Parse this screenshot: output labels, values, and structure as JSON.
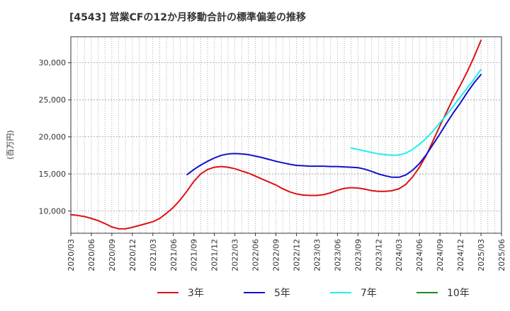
{
  "chart_data": {
    "type": "line",
    "title": "[4543]  営業CFの12か月移動合計の標準偏差の推移",
    "ylabel": "(百万円)",
    "xlabel": "",
    "ylim": [
      7000,
      33500
    ],
    "yticks": [
      10000,
      15000,
      20000,
      25000,
      30000
    ],
    "ytick_labels": [
      "10,000",
      "15,000",
      "20,000",
      "25,000",
      "30,000"
    ],
    "xticks": [
      "2020/03",
      "2020/06",
      "2020/09",
      "2020/12",
      "2021/03",
      "2021/06",
      "2021/09",
      "2021/12",
      "2022/03",
      "2022/06",
      "2022/09",
      "2022/12",
      "2023/03",
      "2023/06",
      "2023/09",
      "2023/12",
      "2024/03",
      "2024/06",
      "2024/09",
      "2024/12",
      "2025/03",
      "2025/06"
    ],
    "grid": true,
    "legend_position": "bottom",
    "series": [
      {
        "name": "3年",
        "color": "#dd1111",
        "points": [
          [
            "2020/03",
            9500
          ],
          [
            "2020/04",
            9400
          ],
          [
            "2020/05",
            9250
          ],
          [
            "2020/06",
            9000
          ],
          [
            "2020/07",
            8700
          ],
          [
            "2020/08",
            8300
          ],
          [
            "2020/09",
            7850
          ],
          [
            "2020/10",
            7600
          ],
          [
            "2020/11",
            7600
          ],
          [
            "2020/12",
            7800
          ],
          [
            "2021/01",
            8050
          ],
          [
            "2021/02",
            8300
          ],
          [
            "2021/03",
            8550
          ],
          [
            "2021/04",
            9000
          ],
          [
            "2021/05",
            9700
          ],
          [
            "2021/06",
            10500
          ],
          [
            "2021/07",
            11500
          ],
          [
            "2021/08",
            12700
          ],
          [
            "2021/09",
            14000
          ],
          [
            "2021/10",
            15000
          ],
          [
            "2021/11",
            15600
          ],
          [
            "2021/12",
            15900
          ],
          [
            "2022/01",
            16000
          ],
          [
            "2022/02",
            15900
          ],
          [
            "2022/03",
            15700
          ],
          [
            "2022/04",
            15400
          ],
          [
            "2022/05",
            15100
          ],
          [
            "2022/06",
            14700
          ],
          [
            "2022/07",
            14300
          ],
          [
            "2022/08",
            13900
          ],
          [
            "2022/09",
            13500
          ],
          [
            "2022/10",
            13000
          ],
          [
            "2022/11",
            12600
          ],
          [
            "2022/12",
            12300
          ],
          [
            "2023/01",
            12150
          ],
          [
            "2023/02",
            12100
          ],
          [
            "2023/03",
            12100
          ],
          [
            "2023/04",
            12200
          ],
          [
            "2023/05",
            12450
          ],
          [
            "2023/06",
            12800
          ],
          [
            "2023/07",
            13050
          ],
          [
            "2023/08",
            13150
          ],
          [
            "2023/09",
            13100
          ],
          [
            "2023/10",
            12950
          ],
          [
            "2023/11",
            12750
          ],
          [
            "2023/12",
            12650
          ],
          [
            "2024/01",
            12650
          ],
          [
            "2024/02",
            12750
          ],
          [
            "2024/03",
            13000
          ],
          [
            "2024/04",
            13600
          ],
          [
            "2024/05",
            14600
          ],
          [
            "2024/06",
            15900
          ],
          [
            "2024/07",
            17500
          ],
          [
            "2024/08",
            19500
          ],
          [
            "2024/09",
            21500
          ],
          [
            "2024/10",
            23400
          ],
          [
            "2024/11",
            25300
          ],
          [
            "2024/12",
            27000
          ],
          [
            "2025/01",
            28800
          ],
          [
            "2025/02",
            30800
          ],
          [
            "2025/03",
            33000
          ]
        ]
      },
      {
        "name": "5年",
        "color": "#1111cc",
        "points": [
          [
            "2021/08",
            14900
          ],
          [
            "2021/09",
            15600
          ],
          [
            "2021/10",
            16200
          ],
          [
            "2021/11",
            16700
          ],
          [
            "2021/12",
            17150
          ],
          [
            "2022/01",
            17500
          ],
          [
            "2022/02",
            17700
          ],
          [
            "2022/03",
            17750
          ],
          [
            "2022/04",
            17700
          ],
          [
            "2022/05",
            17600
          ],
          [
            "2022/06",
            17400
          ],
          [
            "2022/07",
            17200
          ],
          [
            "2022/08",
            16950
          ],
          [
            "2022/09",
            16700
          ],
          [
            "2022/10",
            16500
          ],
          [
            "2022/11",
            16300
          ],
          [
            "2022/12",
            16150
          ],
          [
            "2023/01",
            16100
          ],
          [
            "2023/02",
            16050
          ],
          [
            "2023/03",
            16050
          ],
          [
            "2023/04",
            16050
          ],
          [
            "2023/05",
            16000
          ],
          [
            "2023/06",
            16000
          ],
          [
            "2023/07",
            15950
          ],
          [
            "2023/08",
            15900
          ],
          [
            "2023/09",
            15850
          ],
          [
            "2023/10",
            15650
          ],
          [
            "2023/11",
            15350
          ],
          [
            "2023/12",
            15000
          ],
          [
            "2024/01",
            14750
          ],
          [
            "2024/02",
            14550
          ],
          [
            "2024/03",
            14550
          ],
          [
            "2024/04",
            14850
          ],
          [
            "2024/05",
            15500
          ],
          [
            "2024/06",
            16400
          ],
          [
            "2024/07",
            17600
          ],
          [
            "2024/08",
            19000
          ],
          [
            "2024/09",
            20400
          ],
          [
            "2024/10",
            21900
          ],
          [
            "2024/11",
            23300
          ],
          [
            "2024/12",
            24600
          ],
          [
            "2025/01",
            26000
          ],
          [
            "2025/02",
            27300
          ],
          [
            "2025/03",
            28400
          ]
        ]
      },
      {
        "name": "7年",
        "color": "#22eeee",
        "points": [
          [
            "2023/08",
            18500
          ],
          [
            "2023/09",
            18300
          ],
          [
            "2023/10",
            18100
          ],
          [
            "2023/11",
            17900
          ],
          [
            "2023/12",
            17700
          ],
          [
            "2024/01",
            17600
          ],
          [
            "2024/02",
            17500
          ],
          [
            "2024/03",
            17550
          ],
          [
            "2024/04",
            17800
          ],
          [
            "2024/05",
            18300
          ],
          [
            "2024/06",
            19000
          ],
          [
            "2024/07",
            19800
          ],
          [
            "2024/08",
            20800
          ],
          [
            "2024/09",
            21900
          ],
          [
            "2024/10",
            23000
          ],
          [
            "2024/11",
            24200
          ],
          [
            "2024/12",
            25400
          ],
          [
            "2025/01",
            26600
          ],
          [
            "2025/02",
            27800
          ],
          [
            "2025/03",
            29100
          ]
        ]
      },
      {
        "name": "10年",
        "color": "#228822",
        "points": []
      }
    ]
  }
}
